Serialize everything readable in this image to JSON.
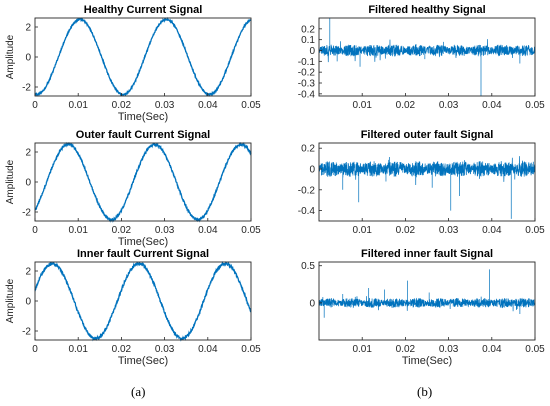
{
  "figure": {
    "panel_labels": [
      "(a)",
      "(b)"
    ],
    "line_color": "#0072BD"
  },
  "chart_data": [
    {
      "type": "line",
      "title": "Healthy Current Signal",
      "xlabel": "Time(Sec)",
      "ylabel": "Amplitude",
      "xlim": [
        0,
        0.05
      ],
      "ylim": [
        -2.6,
        2.6
      ],
      "xticks": [
        0,
        0.01,
        0.02,
        0.03,
        0.04,
        0.05
      ],
      "xtick_labels": [
        "0",
        "0.01",
        "0.02",
        "0.03",
        "0.04",
        "0.05"
      ],
      "yticks": [
        -2,
        0,
        2
      ],
      "ytick_labels": [
        "-2",
        "0",
        "2"
      ],
      "series": [
        {
          "kind": "sine",
          "amplitude": 2.5,
          "frequency_hz": 50,
          "phase_rad": -1.7,
          "noise": 0.05
        }
      ]
    },
    {
      "type": "line",
      "title": "Filtered healthy Signal",
      "xlabel": "",
      "ylabel": "",
      "xlim": [
        0,
        0.05
      ],
      "ylim": [
        -0.42,
        0.3
      ],
      "xticks": [
        0.01,
        0.02,
        0.03,
        0.04,
        0.05
      ],
      "xtick_labels": [
        "0.01",
        "0.02",
        "0.03",
        "0.04",
        "0.05"
      ],
      "yticks": [
        -0.4,
        -0.3,
        -0.2,
        -0.1,
        0,
        0.1,
        0.2
      ],
      "ytick_labels": [
        "-0.4",
        "-0.3",
        "-0.2",
        "-0.1",
        "0",
        "0.1",
        "0.2"
      ],
      "series": [
        {
          "kind": "noise",
          "baseline": 0.0,
          "band": 0.05,
          "spikes": [
            [
              0.0025,
              0.3
            ],
            [
              0.0042,
              -0.1
            ],
            [
              0.0095,
              -0.15
            ],
            [
              0.0245,
              -0.08
            ],
            [
              0.0288,
              0.08
            ],
            [
              0.0375,
              -0.42
            ],
            [
              0.0465,
              -0.12
            ]
          ]
        }
      ]
    },
    {
      "type": "line",
      "title": "Outer fault Current Signal",
      "xlabel": "Time(Sec)",
      "ylabel": "Amplitude",
      "xlim": [
        0,
        0.05
      ],
      "ylim": [
        -2.6,
        2.6
      ],
      "xticks": [
        0,
        0.01,
        0.02,
        0.03,
        0.04,
        0.05
      ],
      "xtick_labels": [
        "0",
        "0.01",
        "0.02",
        "0.03",
        "0.04",
        "0.05"
      ],
      "yticks": [
        -2,
        0,
        2
      ],
      "ytick_labels": [
        "-2",
        "0",
        "2"
      ],
      "series": [
        {
          "kind": "sine",
          "amplitude": 2.5,
          "frequency_hz": 50,
          "phase_rad": -0.85,
          "noise": 0.07
        }
      ]
    },
    {
      "type": "line",
      "title": "Filtered outer fault Signal",
      "xlabel": "",
      "ylabel": "",
      "xlim": [
        0,
        0.05
      ],
      "ylim": [
        -0.5,
        0.25
      ],
      "xticks": [
        0.01,
        0.02,
        0.03,
        0.04,
        0.05
      ],
      "xtick_labels": [
        "0.01",
        "0.02",
        "0.03",
        "0.04",
        "0.05"
      ],
      "yticks": [
        -0.4,
        -0.2,
        0,
        0.2
      ],
      "ytick_labels": [
        "-0.4",
        "-0.2",
        "0",
        "0.2"
      ],
      "series": [
        {
          "kind": "noise",
          "baseline": 0.0,
          "band": 0.07,
          "spikes": [
            [
              0.0055,
              -0.2
            ],
            [
              0.0092,
              -0.32
            ],
            [
              0.0155,
              -0.12
            ],
            [
              0.0225,
              -0.08
            ],
            [
              0.0262,
              -0.18
            ],
            [
              0.0305,
              -0.4
            ],
            [
              0.0325,
              -0.26
            ],
            [
              0.0445,
              -0.48
            ]
          ]
        }
      ]
    },
    {
      "type": "line",
      "title": "Inner fault Current Signal",
      "xlabel": "Time(Sec)",
      "ylabel": "Amplitude",
      "xlim": [
        0,
        0.05
      ],
      "ylim": [
        -2.6,
        2.6
      ],
      "xticks": [
        0,
        0.01,
        0.02,
        0.03,
        0.04,
        0.05
      ],
      "xtick_labels": [
        "0",
        "0.01",
        "0.02",
        "0.03",
        "0.04",
        "0.05"
      ],
      "yticks": [
        -2,
        0,
        2
      ],
      "ytick_labels": [
        "-2",
        "0",
        "2"
      ],
      "series": [
        {
          "kind": "sine",
          "amplitude": 2.5,
          "frequency_hz": 50,
          "phase_rad": 0.3,
          "noise": 0.09
        }
      ]
    },
    {
      "type": "line",
      "title": "Filtered inner fault Signal",
      "xlabel": "Time(Sec)",
      "ylabel": "",
      "xlim": [
        0,
        0.05
      ],
      "ylim": [
        -0.5,
        0.55
      ],
      "xticks": [
        0.01,
        0.02,
        0.03,
        0.04,
        0.05
      ],
      "xtick_labels": [
        "0.01",
        "0.02",
        "0.03",
        "0.04",
        "0.05"
      ],
      "yticks": [
        0,
        0.5
      ],
      "ytick_labels": [
        "0",
        "0.5"
      ],
      "series": [
        {
          "kind": "noise",
          "baseline": 0.0,
          "band": 0.06,
          "spikes": [
            [
              0.0012,
              -0.2
            ],
            [
              0.0055,
              0.12
            ],
            [
              0.0115,
              0.2
            ],
            [
              0.0152,
              0.18
            ],
            [
              0.0205,
              0.3
            ],
            [
              0.0255,
              0.14
            ],
            [
              0.0395,
              0.45
            ],
            [
              0.0465,
              -0.15
            ]
          ]
        }
      ]
    }
  ]
}
